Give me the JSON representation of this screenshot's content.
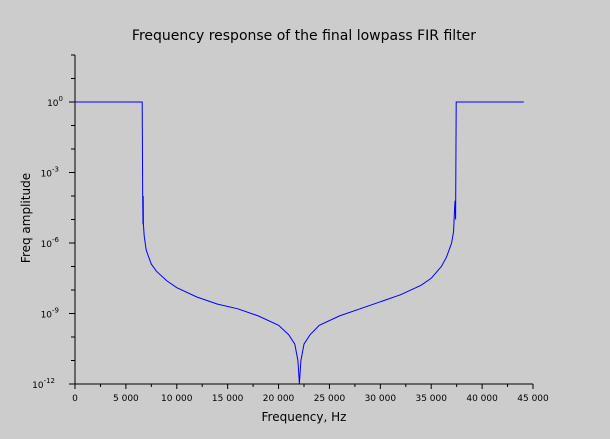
{
  "chart_data": {
    "type": "line",
    "title": "Frequency response of the final lowpass FIR filter",
    "xlabel": "Frequency, Hz",
    "ylabel": "Freq amplitude",
    "x_scale": "linear",
    "y_scale": "log",
    "xlim": [
      0,
      45000
    ],
    "ylim_exponent": [
      -12,
      2
    ],
    "x_ticks": [
      {
        "value": 0,
        "label": "0"
      },
      {
        "value": 5000,
        "label": "5 000"
      },
      {
        "value": 10000,
        "label": "10 000"
      },
      {
        "value": 15000,
        "label": "15 000"
      },
      {
        "value": 20000,
        "label": "20 000"
      },
      {
        "value": 25000,
        "label": "25 000"
      },
      {
        "value": 30000,
        "label": "30 000"
      },
      {
        "value": 35000,
        "label": "35 000"
      },
      {
        "value": 40000,
        "label": "40 000"
      },
      {
        "value": 45000,
        "label": "45 000"
      }
    ],
    "y_ticks": [
      {
        "exp": 0,
        "label": "10",
        "sup": "0"
      },
      {
        "exp": -3,
        "label": "10",
        "sup": "-3"
      },
      {
        "exp": -6,
        "label": "10",
        "sup": "-6"
      },
      {
        "exp": -9,
        "label": "10",
        "sup": "-9"
      },
      {
        "exp": -12,
        "label": "10",
        "sup": "-12"
      }
    ],
    "grid": false,
    "line_color": "#0000ff",
    "series": [
      {
        "x": [
          0,
          6600,
          6650,
          6680,
          6700,
          6720,
          6800,
          7000,
          7500,
          8000,
          9000,
          10000,
          12000,
          14000,
          16000,
          18000,
          20000,
          21000,
          21600,
          21900,
          22050,
          22200,
          22500,
          23100,
          24000,
          26000,
          28000,
          30000,
          32000,
          34000,
          35000,
          36000,
          36500,
          37000,
          37200,
          37300,
          37350,
          37400,
          37450,
          37500,
          44100
        ],
        "y_exp": [
          0,
          0,
          -4.2,
          -5.2,
          -4.0,
          -5.2,
          -5.7,
          -6.3,
          -6.9,
          -7.2,
          -7.6,
          -7.9,
          -8.3,
          -8.6,
          -8.8,
          -9.1,
          -9.5,
          -9.9,
          -10.3,
          -11.0,
          -12.0,
          -11.0,
          -10.3,
          -9.9,
          -9.5,
          -9.1,
          -8.8,
          -8.5,
          -8.2,
          -7.8,
          -7.5,
          -7.0,
          -6.6,
          -6.0,
          -5.5,
          -4.5,
          -4.2,
          -5.0,
          0,
          0,
          0
        ]
      }
    ]
  }
}
